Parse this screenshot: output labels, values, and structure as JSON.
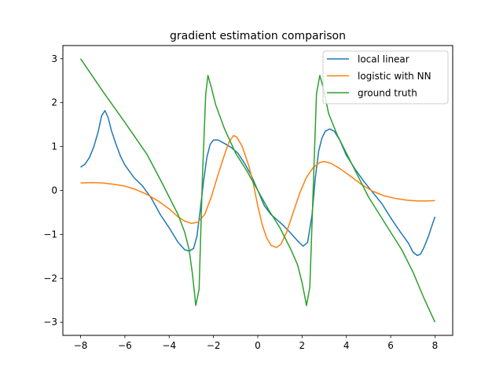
{
  "chart_data": {
    "type": "line",
    "title": "gradient estimation comparison",
    "xlabel": "",
    "ylabel": "",
    "xlim": [
      -8.8,
      8.8
    ],
    "ylim": [
      -3.3,
      3.3
    ],
    "xticks": [
      -8,
      -6,
      -4,
      -2,
      0,
      2,
      4,
      6,
      8
    ],
    "yticks": [
      -3,
      -2,
      -1,
      0,
      1,
      2,
      3
    ],
    "tick_labels": {
      "x": [
        "−8",
        "−6",
        "−4",
        "−2",
        "0",
        "2",
        "4",
        "6",
        "8"
      ],
      "y": [
        "−3",
        "−2",
        "−1",
        "0",
        "1",
        "2",
        "3"
      ]
    },
    "grid": false,
    "legend_position": "top-right",
    "series": [
      {
        "name": "local linear",
        "color": "#1f77b4",
        "points": [
          [
            -8.0,
            0.53
          ],
          [
            -7.8,
            0.6
          ],
          [
            -7.6,
            0.75
          ],
          [
            -7.4,
            1.0
          ],
          [
            -7.2,
            1.35
          ],
          [
            -7.05,
            1.7
          ],
          [
            -6.9,
            1.82
          ],
          [
            -6.75,
            1.65
          ],
          [
            -6.6,
            1.35
          ],
          [
            -6.4,
            1.05
          ],
          [
            -6.2,
            0.78
          ],
          [
            -6.0,
            0.58
          ],
          [
            -5.6,
            0.3
          ],
          [
            -5.2,
            0.1
          ],
          [
            -4.8,
            -0.18
          ],
          [
            -4.4,
            -0.55
          ],
          [
            -4.0,
            -0.85
          ],
          [
            -3.6,
            -1.18
          ],
          [
            -3.3,
            -1.35
          ],
          [
            -3.1,
            -1.38
          ],
          [
            -2.9,
            -1.32
          ],
          [
            -2.75,
            -1.05
          ],
          [
            -2.6,
            -0.45
          ],
          [
            -2.45,
            0.2
          ],
          [
            -2.3,
            0.75
          ],
          [
            -2.15,
            1.05
          ],
          [
            -2.0,
            1.15
          ],
          [
            -1.8,
            1.15
          ],
          [
            -1.5,
            1.07
          ],
          [
            -1.2,
            0.98
          ],
          [
            -0.9,
            0.85
          ],
          [
            -0.6,
            0.62
          ],
          [
            -0.3,
            0.35
          ],
          [
            0.0,
            0.0
          ],
          [
            0.3,
            -0.35
          ],
          [
            0.6,
            -0.55
          ],
          [
            0.9,
            -0.68
          ],
          [
            1.2,
            -0.82
          ],
          [
            1.5,
            -0.98
          ],
          [
            1.8,
            -1.15
          ],
          [
            2.05,
            -1.27
          ],
          [
            2.25,
            -1.18
          ],
          [
            2.45,
            -0.55
          ],
          [
            2.6,
            0.3
          ],
          [
            2.75,
            0.9
          ],
          [
            2.9,
            1.2
          ],
          [
            3.05,
            1.35
          ],
          [
            3.25,
            1.4
          ],
          [
            3.45,
            1.35
          ],
          [
            3.7,
            1.15
          ],
          [
            4.0,
            0.8
          ],
          [
            4.4,
            0.48
          ],
          [
            4.8,
            0.2
          ],
          [
            5.2,
            -0.05
          ],
          [
            5.6,
            -0.3
          ],
          [
            6.0,
            -0.62
          ],
          [
            6.4,
            -0.92
          ],
          [
            6.8,
            -1.2
          ],
          [
            7.0,
            -1.4
          ],
          [
            7.2,
            -1.48
          ],
          [
            7.35,
            -1.45
          ],
          [
            7.5,
            -1.3
          ],
          [
            7.7,
            -1.05
          ],
          [
            7.85,
            -0.82
          ],
          [
            8.0,
            -0.6
          ]
        ]
      },
      {
        "name": "logistic with NN",
        "color": "#ff7f0e",
        "points": [
          [
            -8.0,
            0.17
          ],
          [
            -7.5,
            0.18
          ],
          [
            -7.0,
            0.17
          ],
          [
            -6.5,
            0.14
          ],
          [
            -6.0,
            0.1
          ],
          [
            -5.5,
            0.02
          ],
          [
            -5.0,
            -0.09
          ],
          [
            -4.5,
            -0.24
          ],
          [
            -4.0,
            -0.42
          ],
          [
            -3.6,
            -0.6
          ],
          [
            -3.3,
            -0.7
          ],
          [
            -3.0,
            -0.75
          ],
          [
            -2.7,
            -0.72
          ],
          [
            -2.4,
            -0.55
          ],
          [
            -2.1,
            -0.15
          ],
          [
            -1.8,
            0.35
          ],
          [
            -1.5,
            0.82
          ],
          [
            -1.3,
            1.1
          ],
          [
            -1.1,
            1.25
          ],
          [
            -0.95,
            1.22
          ],
          [
            -0.7,
            1.0
          ],
          [
            -0.4,
            0.55
          ],
          [
            -0.2,
            0.15
          ],
          [
            0.0,
            -0.35
          ],
          [
            0.2,
            -0.78
          ],
          [
            0.4,
            -1.08
          ],
          [
            0.6,
            -1.25
          ],
          [
            0.85,
            -1.3
          ],
          [
            1.05,
            -1.22
          ],
          [
            1.3,
            -0.95
          ],
          [
            1.6,
            -0.5
          ],
          [
            1.9,
            -0.05
          ],
          [
            2.2,
            0.3
          ],
          [
            2.5,
            0.52
          ],
          [
            2.8,
            0.64
          ],
          [
            3.0,
            0.66
          ],
          [
            3.3,
            0.62
          ],
          [
            3.7,
            0.5
          ],
          [
            4.2,
            0.32
          ],
          [
            4.7,
            0.13
          ],
          [
            5.2,
            -0.02
          ],
          [
            5.7,
            -0.12
          ],
          [
            6.2,
            -0.18
          ],
          [
            6.7,
            -0.22
          ],
          [
            7.2,
            -0.24
          ],
          [
            7.6,
            -0.24
          ],
          [
            8.0,
            -0.23
          ]
        ]
      },
      {
        "name": "ground truth",
        "color": "#2ca02c",
        "points": [
          [
            -8.0,
            3.0
          ],
          [
            -7.0,
            2.26
          ],
          [
            -6.0,
            1.55
          ],
          [
            -5.0,
            0.82
          ],
          [
            -4.3,
            0.15
          ],
          [
            -4.0,
            -0.15
          ],
          [
            -3.6,
            -0.55
          ],
          [
            -3.3,
            -0.95
          ],
          [
            -3.1,
            -1.35
          ],
          [
            -2.95,
            -1.9
          ],
          [
            -2.8,
            -2.62
          ],
          [
            -2.65,
            -2.25
          ],
          [
            -2.5,
            0.3
          ],
          [
            -2.35,
            2.2
          ],
          [
            -2.25,
            2.62
          ],
          [
            -2.1,
            2.35
          ],
          [
            -1.9,
            1.95
          ],
          [
            -1.5,
            1.4
          ],
          [
            -1.0,
            0.85
          ],
          [
            -0.5,
            0.45
          ],
          [
            0.0,
            0.0
          ],
          [
            0.5,
            -0.45
          ],
          [
            1.0,
            -0.85
          ],
          [
            1.5,
            -1.35
          ],
          [
            1.8,
            -1.7
          ],
          [
            2.0,
            -2.1
          ],
          [
            2.2,
            -2.62
          ],
          [
            2.35,
            -2.2
          ],
          [
            2.5,
            0.0
          ],
          [
            2.65,
            2.2
          ],
          [
            2.8,
            2.62
          ],
          [
            2.95,
            2.35
          ],
          [
            3.2,
            1.75
          ],
          [
            3.6,
            1.25
          ],
          [
            4.0,
            0.85
          ],
          [
            4.5,
            0.35
          ],
          [
            5.0,
            -0.15
          ],
          [
            5.5,
            -0.55
          ],
          [
            6.0,
            -0.95
          ],
          [
            6.5,
            -1.35
          ],
          [
            7.0,
            -1.85
          ],
          [
            7.5,
            -2.45
          ],
          [
            8.0,
            -3.0
          ]
        ]
      }
    ]
  }
}
